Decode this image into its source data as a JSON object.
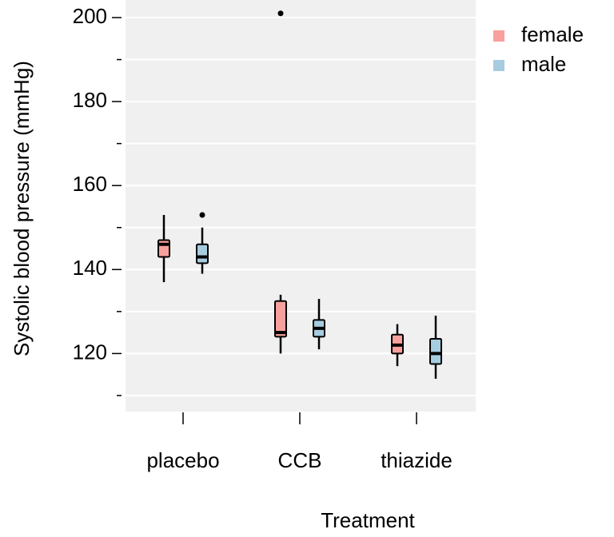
{
  "chart_data": {
    "type": "boxplot",
    "xlabel": "Treatment",
    "ylabel": "Systolic blood pressure (mmHg)",
    "ylim": [
      108,
      204
    ],
    "yticks": [
      120,
      140,
      160,
      180,
      200
    ],
    "yticks_minor": [
      110,
      130,
      150,
      170,
      190
    ],
    "grid": true,
    "legend_position": "top-right",
    "categories": [
      "placebo",
      "CCB",
      "thiazide"
    ],
    "series": [
      {
        "name": "female",
        "color": "#f8a09d",
        "boxes": [
          {
            "category": "placebo",
            "whisker_low": 137,
            "q1": 143,
            "median": 146,
            "q3": 147,
            "whisker_high": 153,
            "outliers": []
          },
          {
            "category": "CCB",
            "whisker_low": 120,
            "q1": 124,
            "median": 125,
            "q3": 132.5,
            "whisker_high": 134,
            "outliers": [
              201
            ]
          },
          {
            "category": "thiazide",
            "whisker_low": 117,
            "q1": 120,
            "median": 122,
            "q3": 124.5,
            "whisker_high": 127,
            "outliers": []
          }
        ]
      },
      {
        "name": "male",
        "color": "#a6cce0",
        "boxes": [
          {
            "category": "placebo",
            "whisker_low": 139,
            "q1": 141.5,
            "median": 143,
            "q3": 146,
            "whisker_high": 150,
            "outliers": [
              153
            ]
          },
          {
            "category": "CCB",
            "whisker_low": 121,
            "q1": 124,
            "median": 126,
            "q3": 128,
            "whisker_high": 133,
            "outliers": []
          },
          {
            "category": "thiazide",
            "whisker_low": 114,
            "q1": 117.5,
            "median": 120,
            "q3": 123.5,
            "whisker_high": 129,
            "outliers": []
          }
        ]
      }
    ]
  }
}
